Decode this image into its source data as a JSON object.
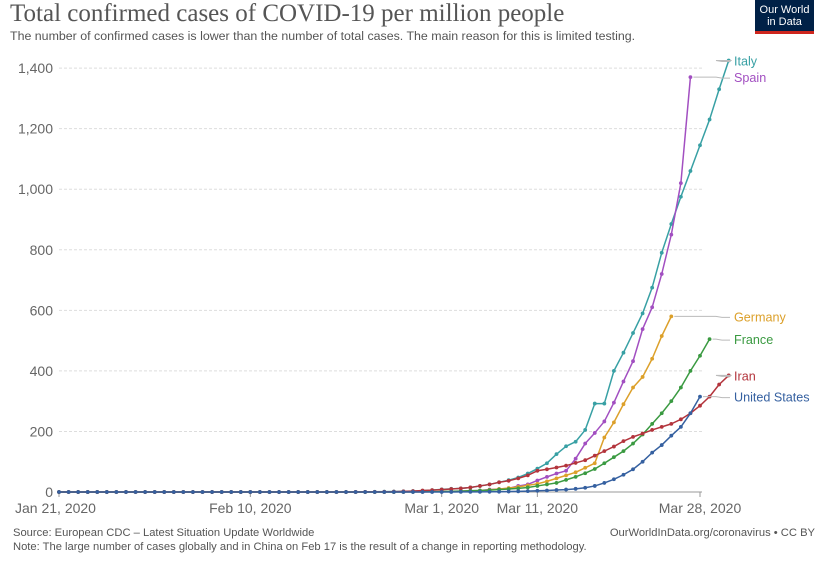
{
  "logo": {
    "line1": "Our World",
    "line2": "in Data"
  },
  "footer": {
    "source": "Source: European CDC – Latest Situation Update Worldwide",
    "credit": "OurWorldInData.org/coronavirus • CC BY",
    "note": "Note: The large number of cases globally and in China on Feb 17 is the result of a change in reporting methodology."
  },
  "chart_data": {
    "type": "line",
    "title": "Total confirmed cases of COVID-19 per million people",
    "subtitle": "The number of confirmed cases is lower than the number of total cases. The main reason for this is limited testing.",
    "xlabel": "",
    "ylabel": "",
    "x_start": "Jan 21, 2020",
    "x_end": "Mar 28, 2020",
    "x_ticks": [
      "Jan 21, 2020",
      "Feb 10, 2020",
      "Mar 1, 2020",
      "Mar 11, 2020",
      "Mar 28, 2020"
    ],
    "y_ticks": [
      "0",
      "200",
      "400",
      "600",
      "800",
      "1,000",
      "1,200",
      "1,400"
    ],
    "ylim": [
      0,
      1430
    ],
    "grid": true,
    "legend": "right-end labels",
    "series": [
      {
        "name": "Italy",
        "color": "#38a0a4",
        "from": "Feb 21, 2020",
        "values": [
          0.05,
          0.3,
          0.7,
          1.2,
          1.6,
          2.2,
          3.1,
          4.0,
          6.0,
          8.5,
          10.5,
          12,
          15,
          20,
          25,
          32,
          39,
          48,
          61,
          77,
          95,
          125,
          151,
          166,
          205,
          292,
          292,
          400,
          460,
          525,
          590,
          675,
          790,
          885,
          975,
          1060,
          1145,
          1230,
          1330,
          1425
        ]
      },
      {
        "name": "Spain",
        "color": "#a24fc1",
        "from": "Feb 25, 2020",
        "values": [
          0.1,
          0.2,
          0.3,
          0.5,
          0.9,
          1.2,
          2.5,
          3,
          4,
          5,
          8,
          10,
          12,
          20,
          25,
          38,
          50,
          61,
          70,
          110,
          160,
          195,
          233,
          295,
          365,
          432,
          538,
          610,
          720,
          850,
          1020,
          1370
        ]
      },
      {
        "name": "Germany",
        "color": "#dca02a",
        "from": "Feb 27, 2020",
        "values": [
          0.3,
          0.4,
          0.8,
          1.1,
          1.8,
          2.5,
          3.5,
          4.5,
          7,
          10,
          13,
          17,
          22,
          27,
          35,
          45,
          55,
          65,
          80,
          95,
          180,
          230,
          290,
          345,
          380,
          440,
          515,
          580
        ]
      },
      {
        "name": "France",
        "color": "#3a9a41",
        "from": "Feb 25, 2020",
        "values": [
          0.2,
          0.3,
          0.5,
          0.8,
          1,
          1.5,
          2,
          3,
          4,
          5,
          6,
          8,
          10,
          12,
          15,
          20,
          25,
          30,
          40,
          50,
          62,
          76,
          95,
          115,
          135,
          160,
          190,
          225,
          260,
          300,
          345,
          400,
          450,
          505
        ]
      },
      {
        "name": "Iran",
        "color": "#b3343c",
        "from": "Feb 20, 2020",
        "values": [
          0.1,
          0.2,
          0.3,
          0.4,
          0.6,
          1,
          2,
          3,
          5,
          6,
          8,
          10,
          12,
          15,
          20,
          25,
          32,
          37,
          45,
          55,
          70,
          75,
          81,
          87,
          96,
          105,
          120,
          135,
          150,
          168,
          182,
          193,
          205,
          215,
          225,
          240,
          260,
          285,
          315,
          355,
          385
        ]
      },
      {
        "name": "United States",
        "color": "#3560a0",
        "from": "Mar 1, 2020",
        "values": [
          0.1,
          0.2,
          0.3,
          0.4,
          0.5,
          0.7,
          1,
          1.5,
          2.2,
          3,
          4,
          5,
          6.5,
          8,
          10.5,
          14,
          20,
          30,
          42,
          57,
          75,
          100,
          130,
          155,
          186,
          215,
          260,
          315
        ]
      }
    ]
  }
}
